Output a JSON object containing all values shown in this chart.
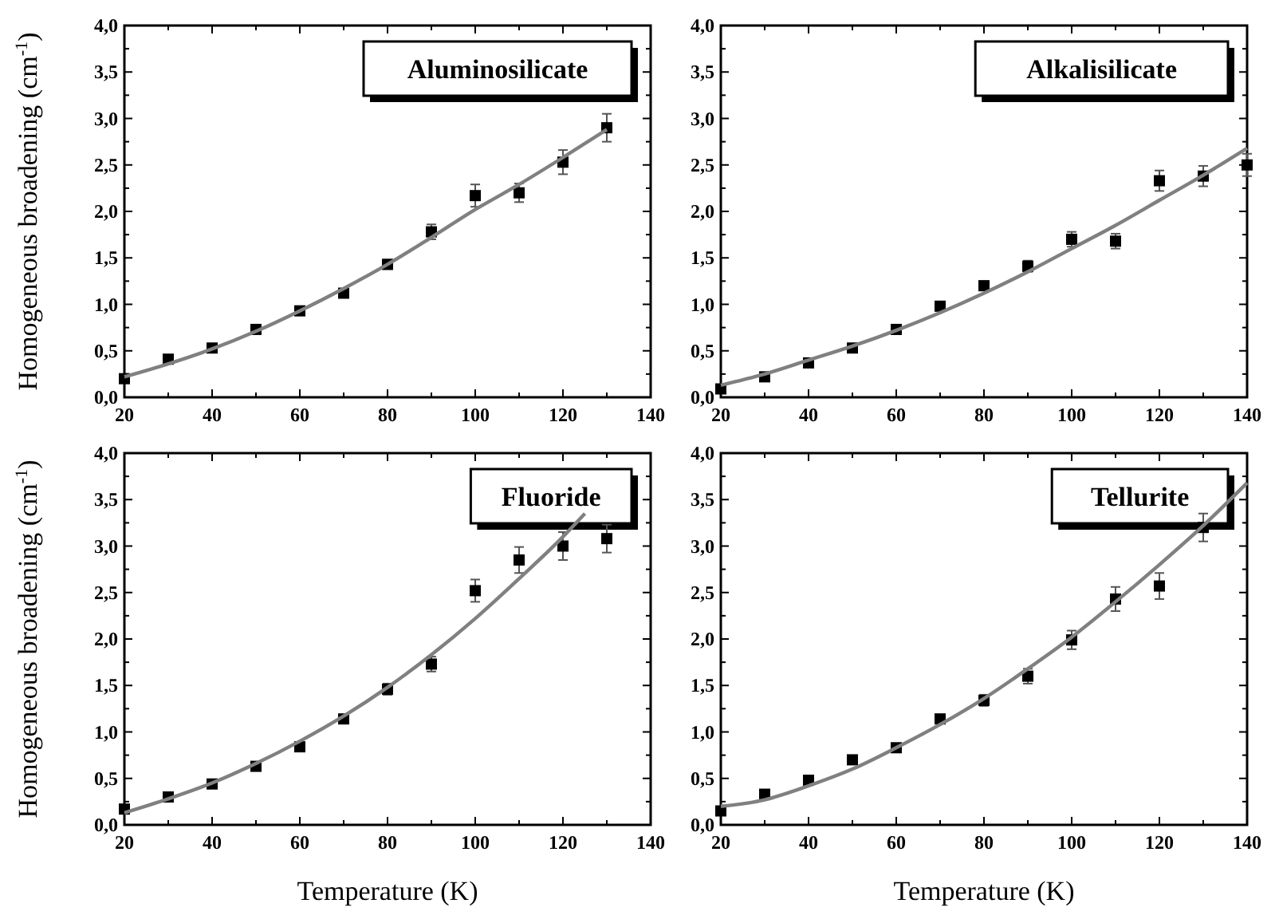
{
  "chart_data": [
    {
      "type": "scatter",
      "ylabel": "Homogeneous broadening (cm$^{-1}$)",
      "annotations": [
        "Aluminosilicate"
      ],
      "xlim": [
        20,
        140
      ],
      "xticks": [
        20,
        40,
        60,
        80,
        100,
        120,
        140
      ],
      "ylim": [
        0,
        4
      ],
      "yticks": [
        {
          "value": 0,
          "label": "0,0"
        },
        {
          "value": 0.5,
          "label": "0,5"
        },
        {
          "value": 1,
          "label": "1,0"
        },
        {
          "value": 1.5,
          "label": "1,5"
        },
        {
          "value": 2,
          "label": "2,0"
        },
        {
          "value": 2.5,
          "label": "2,5"
        },
        {
          "value": 3,
          "label": "3,0"
        },
        {
          "value": 3.5,
          "label": "3,5"
        },
        {
          "value": 4,
          "label": "4,0"
        }
      ],
      "series": [
        {
          "type": "scatter",
          "marker": "square",
          "color": "#000000",
          "x": [
            20,
            30,
            40,
            50,
            60,
            70,
            80,
            90,
            100,
            110,
            120,
            130
          ],
          "values": [
            0.2,
            0.41,
            0.53,
            0.73,
            0.93,
            1.12,
            1.43,
            1.78,
            2.17,
            2.2,
            2.53,
            2.9
          ],
          "errors": [
            0.03,
            0.03,
            0.03,
            0.03,
            0.03,
            0.04,
            0.05,
            0.08,
            0.12,
            0.1,
            0.13,
            0.15
          ]
        },
        {
          "type": "line",
          "line_style": "solid",
          "color": "#808080",
          "x": [
            20,
            30,
            40,
            50,
            60,
            70,
            80,
            90,
            100,
            110,
            120,
            130
          ],
          "values": [
            0.22,
            0.36,
            0.52,
            0.71,
            0.93,
            1.17,
            1.43,
            1.72,
            2.02,
            2.29,
            2.58,
            2.88
          ]
        }
      ]
    },
    {
      "type": "scatter",
      "annotations": [
        "Alkalisilicate"
      ],
      "xlim": [
        20,
        140
      ],
      "xticks": [
        20,
        40,
        60,
        80,
        100,
        120,
        140
      ],
      "ylim": [
        0,
        4
      ],
      "yticks": [
        {
          "value": 0,
          "label": "0,0"
        },
        {
          "value": 0.5,
          "label": "0,5"
        },
        {
          "value": 1,
          "label": "1,0"
        },
        {
          "value": 1.5,
          "label": "1,5"
        },
        {
          "value": 2,
          "label": "2,0"
        },
        {
          "value": 2.5,
          "label": "2,5"
        },
        {
          "value": 3,
          "label": "3,0"
        },
        {
          "value": 3.5,
          "label": "3,5"
        },
        {
          "value": 4,
          "label": "4,0"
        }
      ],
      "series": [
        {
          "type": "scatter",
          "marker": "square",
          "color": "#000000",
          "x": [
            20,
            30,
            40,
            50,
            60,
            70,
            80,
            90,
            100,
            110,
            120,
            130,
            140
          ],
          "values": [
            0.09,
            0.22,
            0.37,
            0.53,
            0.73,
            0.98,
            1.2,
            1.41,
            1.7,
            1.68,
            2.33,
            2.38,
            2.5
          ],
          "errors": [
            0.03,
            0.03,
            0.03,
            0.03,
            0.03,
            0.04,
            0.05,
            0.06,
            0.08,
            0.08,
            0.11,
            0.11,
            0.12
          ]
        },
        {
          "type": "line",
          "line_style": "solid",
          "color": "#808080",
          "x": [
            20,
            30,
            40,
            50,
            60,
            70,
            80,
            90,
            100,
            110,
            120,
            130,
            140
          ],
          "values": [
            0.13,
            0.25,
            0.4,
            0.55,
            0.72,
            0.91,
            1.12,
            1.35,
            1.6,
            1.85,
            2.12,
            2.39,
            2.68
          ]
        }
      ]
    },
    {
      "type": "scatter",
      "xlabel": "Temperature (K)",
      "ylabel": "Homogeneous broadening (cm$^{-1}$)",
      "annotations": [
        "Fluoride"
      ],
      "xlim": [
        20,
        140
      ],
      "xticks": [
        20,
        40,
        60,
        80,
        100,
        120,
        140
      ],
      "ylim": [
        0,
        4
      ],
      "yticks": [
        {
          "value": 0,
          "label": "0,0"
        },
        {
          "value": 0.5,
          "label": "0,5"
        },
        {
          "value": 1,
          "label": "1,0"
        },
        {
          "value": 1.5,
          "label": "1,5"
        },
        {
          "value": 2,
          "label": "2,0"
        },
        {
          "value": 2.5,
          "label": "2,5"
        },
        {
          "value": 3,
          "label": "3,0"
        },
        {
          "value": 3.5,
          "label": "3,5"
        },
        {
          "value": 4,
          "label": "4,0"
        }
      ],
      "series": [
        {
          "type": "scatter",
          "marker": "square",
          "color": "#000000",
          "x": [
            20,
            30,
            40,
            50,
            60,
            70,
            80,
            90,
            100,
            110,
            120,
            130
          ],
          "values": [
            0.17,
            0.3,
            0.44,
            0.63,
            0.84,
            1.14,
            1.46,
            1.73,
            2.52,
            2.85,
            3.0,
            3.08
          ],
          "errors": [
            0.03,
            0.03,
            0.03,
            0.03,
            0.03,
            0.04,
            0.06,
            0.08,
            0.12,
            0.14,
            0.15,
            0.15
          ]
        },
        {
          "type": "line",
          "line_style": "solid",
          "color": "#808080",
          "x": [
            20,
            30,
            40,
            50,
            60,
            70,
            80,
            90,
            100,
            110,
            120,
            125
          ],
          "values": [
            0.13,
            0.28,
            0.45,
            0.66,
            0.9,
            1.17,
            1.48,
            1.83,
            2.22,
            2.65,
            3.1,
            3.35
          ]
        }
      ]
    },
    {
      "type": "scatter",
      "xlabel": "Temperature (K)",
      "annotations": [
        "Tellurite"
      ],
      "xlim": [
        20,
        140
      ],
      "xticks": [
        20,
        40,
        60,
        80,
        100,
        120,
        140
      ],
      "ylim": [
        0,
        4
      ],
      "yticks": [
        {
          "value": 0,
          "label": "0,0"
        },
        {
          "value": 0.5,
          "label": "0,5"
        },
        {
          "value": 1,
          "label": "1,0"
        },
        {
          "value": 1.5,
          "label": "1,5"
        },
        {
          "value": 2,
          "label": "2,0"
        },
        {
          "value": 2.5,
          "label": "2,5"
        },
        {
          "value": 3,
          "label": "3,0"
        },
        {
          "value": 3.5,
          "label": "3,5"
        },
        {
          "value": 4,
          "label": "4,0"
        }
      ],
      "series": [
        {
          "type": "scatter",
          "marker": "square",
          "color": "#000000",
          "x": [
            20,
            30,
            40,
            50,
            60,
            70,
            80,
            90,
            100,
            110,
            120,
            130
          ],
          "values": [
            0.15,
            0.33,
            0.48,
            0.7,
            0.83,
            1.14,
            1.34,
            1.6,
            1.99,
            2.43,
            2.57,
            3.2
          ],
          "errors": [
            0.03,
            0.03,
            0.03,
            0.03,
            0.03,
            0.04,
            0.06,
            0.08,
            0.1,
            0.13,
            0.14,
            0.15
          ]
        },
        {
          "type": "line",
          "line_style": "solid",
          "color": "#808080",
          "x": [
            20,
            30,
            40,
            50,
            60,
            70,
            80,
            90,
            100,
            110,
            120,
            130,
            140
          ],
          "values": [
            0.2,
            0.27,
            0.42,
            0.6,
            0.83,
            1.08,
            1.36,
            1.68,
            2.02,
            2.4,
            2.8,
            3.22,
            3.68
          ]
        }
      ]
    }
  ]
}
